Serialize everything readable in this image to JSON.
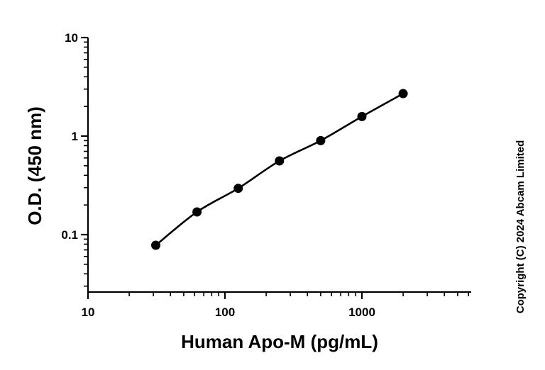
{
  "chart_data": {
    "type": "scatter",
    "xlabel": "Human Apo-M (pg/mL)",
    "ylabel": "O.D. (450 nm)",
    "x_scale": "log",
    "y_scale": "log",
    "xlim": [
      10,
      6000
    ],
    "ylim": [
      0.025,
      10
    ],
    "x_ticks": [
      {
        "value": 10,
        "label": "10"
      },
      {
        "value": 100,
        "label": "100"
      },
      {
        "value": 1000,
        "label": "1000"
      }
    ],
    "y_ticks": [
      {
        "value": 0.1,
        "label": "0.1"
      },
      {
        "value": 1,
        "label": "1"
      },
      {
        "value": 10,
        "label": "10"
      }
    ],
    "series": [
      {
        "x": [
          31.25,
          62.5,
          125,
          250,
          500,
          1000,
          2000
        ],
        "y": [
          0.078,
          0.17,
          0.295,
          0.56,
          0.9,
          1.58,
          2.7
        ]
      }
    ],
    "fit_curve": true,
    "grid": false,
    "color": "#000000"
  },
  "copyright": "Copyright (C) 2024 Abcam Limited"
}
